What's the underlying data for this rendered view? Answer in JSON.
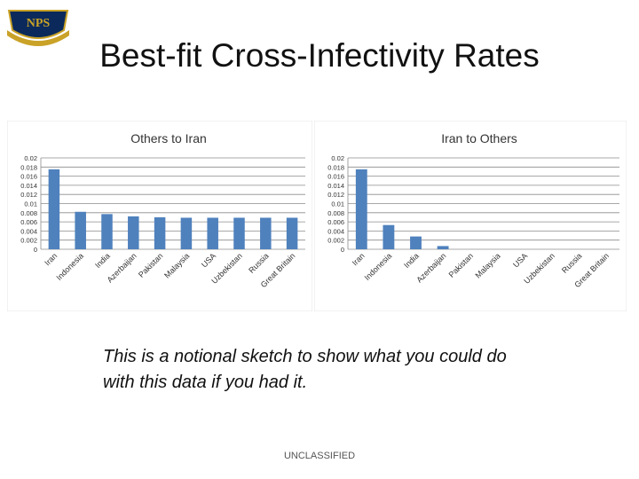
{
  "slide": {
    "title": "Best-fit Cross-Infectivity Rates",
    "caption_line1": "This is a notional sketch to show what you could do",
    "caption_line2": "with this data if you had it.",
    "footer": "UNCLASSIFIED"
  },
  "logo": {
    "text": "NPS"
  },
  "colors": {
    "bar": "#4F81BD",
    "grid": "#8c8c8c",
    "text": "#333333"
  },
  "chart_data": [
    {
      "type": "bar",
      "title": "Others to Iran",
      "categories": [
        "Iran",
        "Indonesia",
        "India",
        "Azerbaijan",
        "Pakistan",
        "Malaysia",
        "USA",
        "Uzbekistan",
        "Russia",
        "Great Britain"
      ],
      "values": [
        0.0175,
        0.0082,
        0.0077,
        0.0072,
        0.007,
        0.0069,
        0.0069,
        0.0069,
        0.0069,
        0.0069
      ],
      "ylim": [
        0,
        0.02
      ],
      "yticks": [
        "0",
        "0.002",
        "0.004",
        "0.006",
        "0.008",
        "0.01",
        "0.012",
        "0.014",
        "0.016",
        "0.018",
        "0.02"
      ],
      "xlabel": "",
      "ylabel": "",
      "grid": true
    },
    {
      "type": "bar",
      "title": "Iran to Others",
      "categories": [
        "Iran",
        "Indonesia",
        "India",
        "Azerbaijan",
        "Pakistan",
        "Malaysia",
        "USA",
        "Uzbekistan",
        "Russia",
        "Great Britain"
      ],
      "values": [
        0.0175,
        0.0053,
        0.0028,
        0.0007,
        0,
        0,
        0,
        0,
        0,
        0
      ],
      "ylim": [
        0,
        0.02
      ],
      "yticks": [
        "0",
        "0.002",
        "0.004",
        "0.006",
        "0.008",
        "0.01",
        "0.012",
        "0.014",
        "0.016",
        "0.018",
        "0.02"
      ],
      "xlabel": "",
      "ylabel": "",
      "grid": true
    }
  ]
}
